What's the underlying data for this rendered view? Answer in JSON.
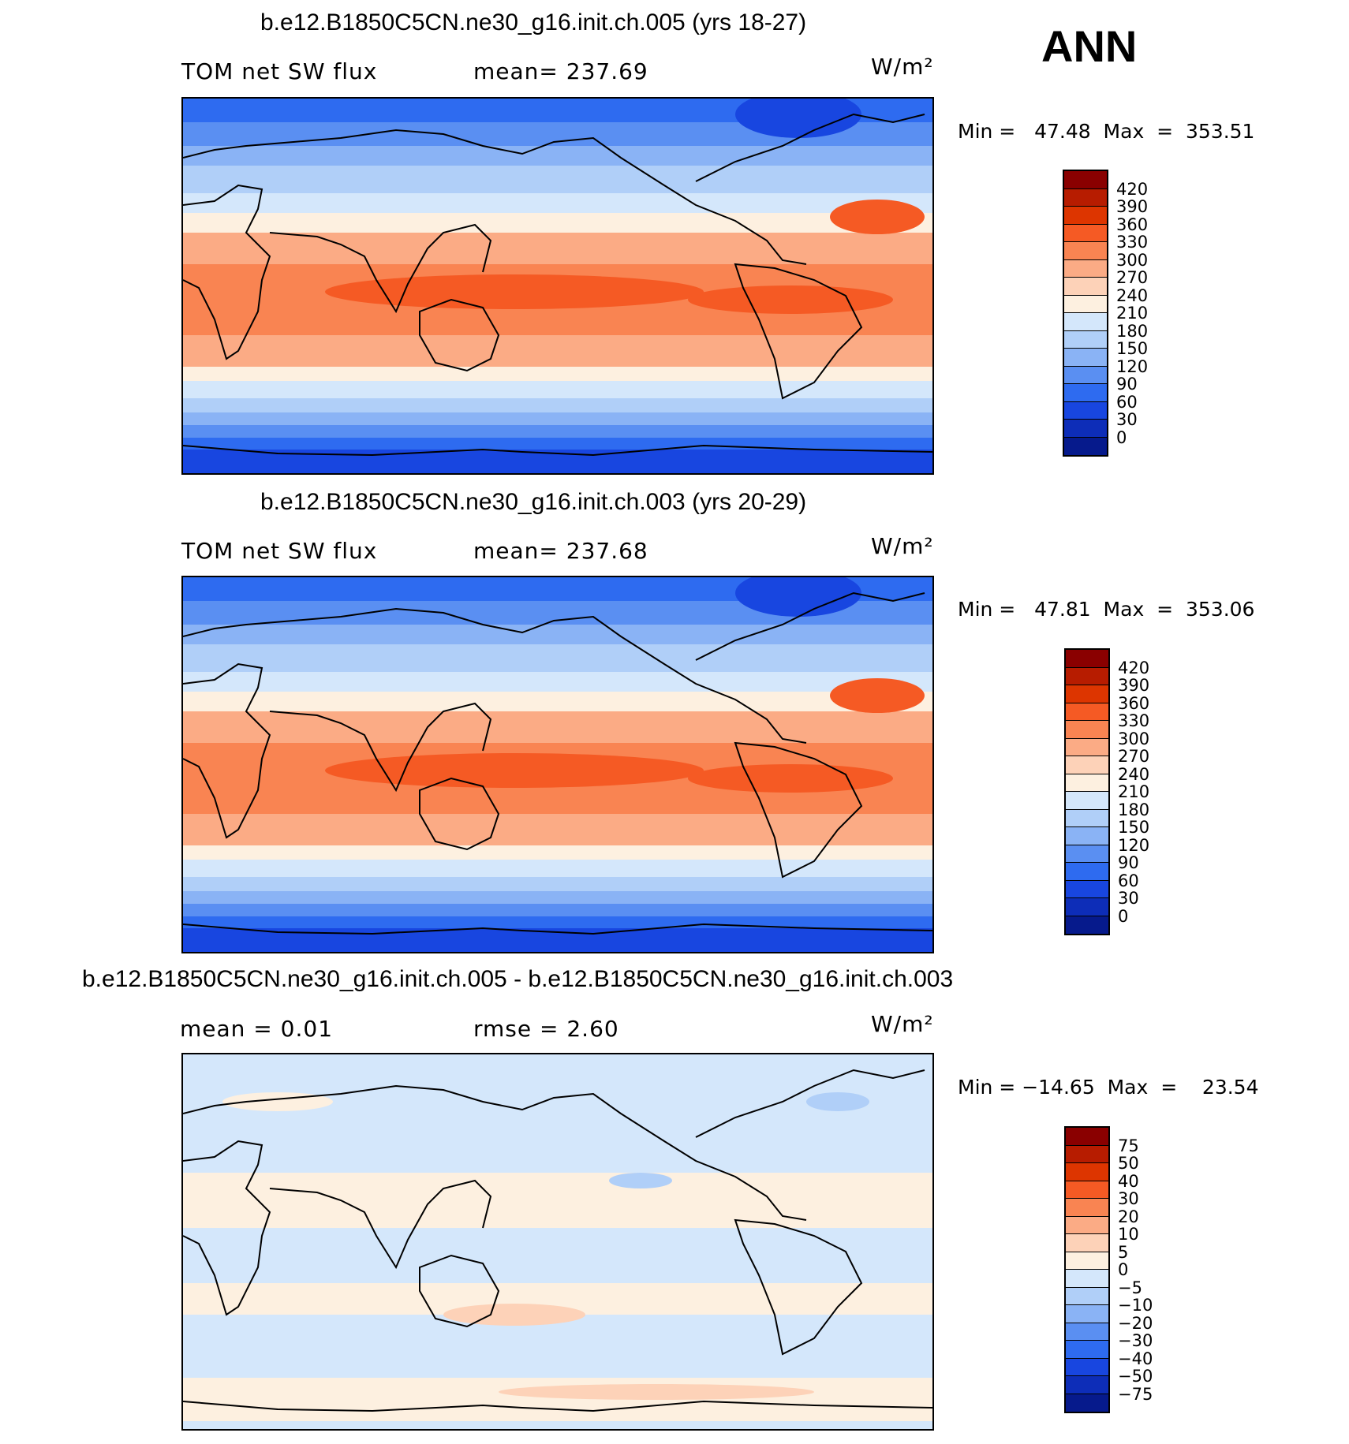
{
  "season": "ANN",
  "panels": [
    {
      "title": "b.e12.B1850C5CN.ne30_g16.init.ch.005 (yrs 18-27)",
      "left_label": "TOM net SW flux",
      "center_label": "mean=  237.69",
      "units": "W/m²",
      "minmax": "Min =   47.48  Max  =  353.51",
      "colorbar": {
        "colors": [
          "#8a0000",
          "#b71c00",
          "#dd3500",
          "#f55a24",
          "#f98452",
          "#fbab85",
          "#fdd2b8",
          "#fdf0e0",
          "#d4e7fb",
          "#b0cff8",
          "#8ab3f5",
          "#5a8ff2",
          "#2e6bf0",
          "#1846e0",
          "#0d2db8",
          "#061a8c"
        ],
        "labels": [
          "420",
          "390",
          "360",
          "330",
          "300",
          "270",
          "240",
          "210",
          "180",
          "150",
          "120",
          "90",
          "60",
          "30",
          "0"
        ]
      }
    },
    {
      "title": "b.e12.B1850C5CN.ne30_g16.init.ch.003 (yrs 20-29)",
      "left_label": "TOM net SW flux",
      "center_label": "mean=  237.68",
      "units": "W/m²",
      "minmax": "Min =   47.81  Max  =  353.06",
      "colorbar": {
        "colors": [
          "#8a0000",
          "#b71c00",
          "#dd3500",
          "#f55a24",
          "#f98452",
          "#fbab85",
          "#fdd2b8",
          "#fdf0e0",
          "#d4e7fb",
          "#b0cff8",
          "#8ab3f5",
          "#5a8ff2",
          "#2e6bf0",
          "#1846e0",
          "#0d2db8",
          "#061a8c"
        ],
        "labels": [
          "420",
          "390",
          "360",
          "330",
          "300",
          "270",
          "240",
          "210",
          "180",
          "150",
          "120",
          "90",
          "60",
          "30",
          "0"
        ]
      }
    },
    {
      "title": "b.e12.B1850C5CN.ne30_g16.init.ch.005 - b.e12.B1850C5CN.ne30_g16.init.ch.003",
      "left_label": "mean =     0.01",
      "center_label": "rmse =     2.60",
      "units": "W/m²",
      "minmax": "Min = −14.65  Max  =    23.54",
      "colorbar": {
        "colors": [
          "#8a0000",
          "#b71c00",
          "#dd3500",
          "#f55a24",
          "#f98452",
          "#fbab85",
          "#fdd2b8",
          "#fdf0e0",
          "#d4e7fb",
          "#b0cff8",
          "#8ab3f5",
          "#5a8ff2",
          "#2e6bf0",
          "#1846e0",
          "#0d2db8",
          "#061a8c"
        ],
        "labels": [
          "75",
          "50",
          "40",
          "30",
          "20",
          "10",
          "5",
          "0",
          "−5",
          "−10",
          "−20",
          "−30",
          "−40",
          "−50",
          "−75"
        ]
      }
    }
  ],
  "chart_data": {
    "type": "heatmap",
    "maps": [
      {
        "name": "b.e12.B1850C5CN.ne30_g16.init.ch.005 (yrs 18-27)",
        "variable": "TOM net SW flux",
        "units": "W/m²",
        "mean": 237.69,
        "min": 47.48,
        "max": 353.51,
        "contour_levels": [
          0,
          30,
          60,
          90,
          120,
          150,
          180,
          210,
          240,
          270,
          300,
          330,
          360,
          390,
          420
        ]
      },
      {
        "name": "b.e12.B1850C5CN.ne30_g16.init.ch.003 (yrs 20-29)",
        "variable": "TOM net SW flux",
        "units": "W/m²",
        "mean": 237.68,
        "min": 47.81,
        "max": 353.06,
        "contour_levels": [
          0,
          30,
          60,
          90,
          120,
          150,
          180,
          210,
          240,
          270,
          300,
          330,
          360,
          390,
          420
        ]
      },
      {
        "name": "b.e12.B1850C5CN.ne30_g16.init.ch.005 - b.e12.B1850C5CN.ne30_g16.init.ch.003",
        "units": "W/m²",
        "mean": 0.01,
        "rmse": 2.6,
        "min": -14.65,
        "max": 23.54,
        "contour_levels": [
          -75,
          -50,
          -40,
          -30,
          -20,
          -10,
          -5,
          0,
          5,
          10,
          20,
          30,
          40,
          50,
          75
        ]
      }
    ]
  }
}
